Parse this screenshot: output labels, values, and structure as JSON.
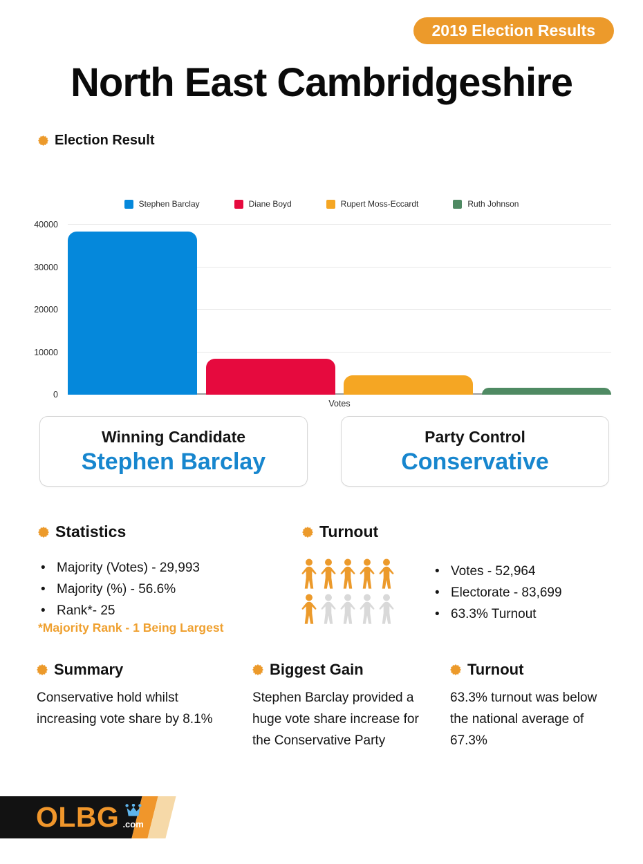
{
  "badge": {
    "label": "2019 Election Results"
  },
  "title": "North East Cambridgeshire",
  "sections": {
    "election_result_heading": "Election Result",
    "statistics_heading": "Statistics",
    "turnout_heading": "Turnout",
    "summary_heading": "Summary",
    "biggest_gain_heading": "Biggest Gain",
    "turnout_note_heading": "Turnout"
  },
  "chart_data": {
    "type": "bar",
    "categories": [
      "Stephen Barclay",
      "Diane Boyd",
      "Rupert Moss-Eccardt",
      "Ruth Johnson"
    ],
    "values": [
      38423,
      8430,
      4502,
      1609
    ],
    "colors": [
      "#0588DB",
      "#E60A3E",
      "#F5A623",
      "#4F8A63"
    ],
    "title": "",
    "xlabel": "Votes",
    "ylabel": "",
    "ylim": [
      0,
      40000
    ],
    "yticks": [
      0,
      10000,
      20000,
      30000,
      40000
    ],
    "grid": true,
    "legend_position": "top"
  },
  "cards": [
    {
      "title": "Winning Candidate",
      "value": "Stephen Barclay"
    },
    {
      "title": "Party Control",
      "value": "Conservative"
    }
  ],
  "statistics": {
    "items": [
      "Majority (Votes) - 29,993",
      "Majority (%) - 56.6%",
      "Rank*- 25"
    ],
    "footnote": "*Majority Rank - 1 Being Largest"
  },
  "turnout": {
    "people": {
      "total": 10,
      "filled": 6
    },
    "items": [
      "Votes - 52,964",
      "Electorate - 83,699",
      "63.3% Turnout"
    ]
  },
  "summary": {
    "text": "Conservative hold whilst increasing vote share by 8.1%"
  },
  "biggest_gain": {
    "text": "Stephen Barclay provided a huge vote share increase for the Conservative Party"
  },
  "turnout_note": {
    "text": "63.3% turnout was below the national average of 67.3%"
  },
  "footer": {
    "brand": "OLBG",
    "suffix": ".com"
  },
  "colors": {
    "accent_orange": "#EC9A2B",
    "brand_orange": "#F0962B",
    "card_blue": "#1786CE",
    "footnote_orange": "#EFA02F",
    "person_gray": "#D9D9D9",
    "crown_blue": "#5FB5EC",
    "tan": "#F6D9A8",
    "bar_blue": "#0588DB",
    "bar_red": "#E60A3E",
    "bar_orange": "#F5A623",
    "bar_green": "#4F8A63"
  },
  "icons": {
    "sunburst-icon": "orange 12-point starburst bullet",
    "person-icon": "standing person silhouette",
    "crown-icon": "blue crown in brand logo"
  }
}
